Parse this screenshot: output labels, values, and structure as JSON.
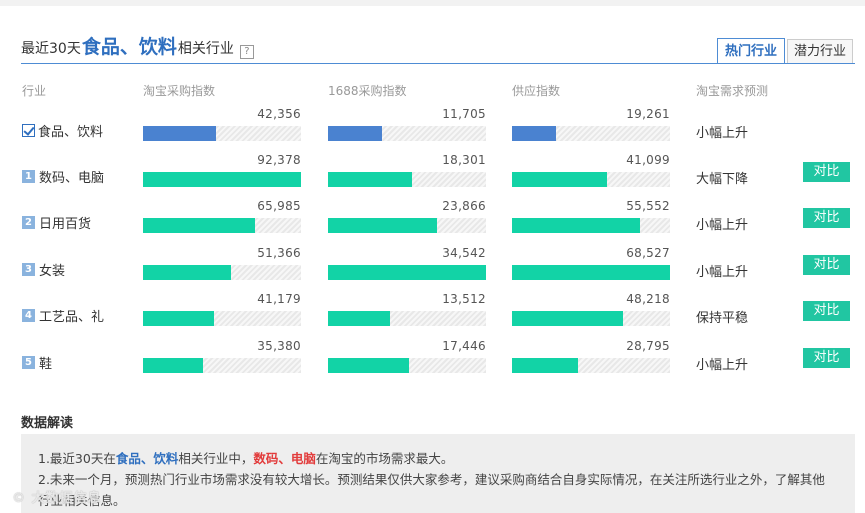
{
  "title": {
    "prefix": "最近30天",
    "highlight": "食品、饮料",
    "suffix": "相关行业",
    "help": "?"
  },
  "tabs": [
    "热门行业",
    "潜力行业"
  ],
  "headers": [
    "行业",
    "淘宝采购指数",
    "1688采购指数",
    "供应指数",
    "淘宝需求预测"
  ],
  "accent": {
    "selected_bar": "#4a82d0",
    "bar": "#12d3a6",
    "button": "#21c6a2",
    "highlight_text": "#2f6fbf",
    "alert_text": "#e23b3b"
  },
  "rows": [
    {
      "rank": "",
      "checked": true,
      "name": "食品、饮料",
      "taobao": "42,356",
      "p1688": "11,705",
      "supply": "19,261",
      "taobao_pct": 0.46,
      "p1688_pct": 0.34,
      "supply_pct": 0.28,
      "trend": "小幅上升",
      "compare": ""
    },
    {
      "rank": "1",
      "checked": false,
      "name": "数码、电脑",
      "taobao": "92,378",
      "p1688": "18,301",
      "supply": "41,099",
      "taobao_pct": 1.0,
      "p1688_pct": 0.53,
      "supply_pct": 0.6,
      "trend": "大幅下降",
      "compare": "对比"
    },
    {
      "rank": "2",
      "checked": false,
      "name": "日用百货",
      "taobao": "65,985",
      "p1688": "23,866",
      "supply": "55,552",
      "taobao_pct": 0.71,
      "p1688_pct": 0.69,
      "supply_pct": 0.81,
      "trend": "小幅上升",
      "compare": "对比"
    },
    {
      "rank": "3",
      "checked": false,
      "name": "女装",
      "taobao": "51,366",
      "p1688": "34,542",
      "supply": "68,527",
      "taobao_pct": 0.56,
      "p1688_pct": 1.0,
      "supply_pct": 1.0,
      "trend": "小幅上升",
      "compare": "对比"
    },
    {
      "rank": "4",
      "checked": false,
      "name": "工艺品、礼",
      "taobao": "41,179",
      "p1688": "13,512",
      "supply": "48,218",
      "taobao_pct": 0.45,
      "p1688_pct": 0.39,
      "supply_pct": 0.7,
      "trend": "保持平稳",
      "compare": "对比"
    },
    {
      "rank": "5",
      "checked": false,
      "name": "鞋",
      "taobao": "35,380",
      "p1688": "17,446",
      "supply": "28,795",
      "taobao_pct": 0.38,
      "p1688_pct": 0.51,
      "supply_pct": 0.42,
      "trend": "小幅上升",
      "compare": "对比"
    }
  ],
  "interpretation": {
    "heading": "数据解读",
    "l1_a": "1.最近30天在",
    "l1_b": "食品、饮料",
    "l1_c": "相关行业中，",
    "l1_d": "数码、电脑",
    "l1_e": "在淘宝的市场需求最大。",
    "l2": "2.未来一个月，预测热门行业市场需求没有较大增长。预测结果仅供大家参考，建议采购商结合自身实际情况，在关注所选行业之外，了解其他",
    "l3": "行业相关信息。"
  },
  "watermark": "大数据信息"
}
